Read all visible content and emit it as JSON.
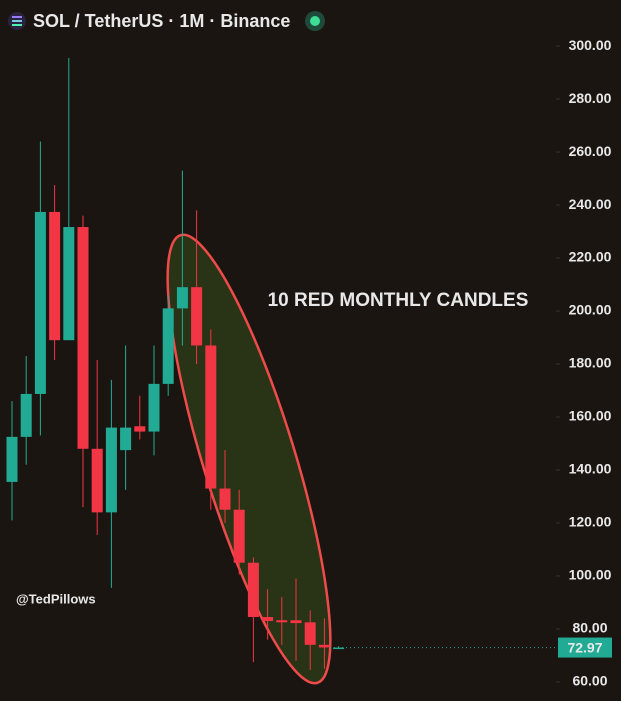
{
  "chart_data": {
    "type": "candlestick",
    "title": "SOL / TetherUS · 1M · Binance",
    "annotation": "10 RED MONTHLY CANDLES",
    "watermark": "@TedPillows",
    "open": [
      135.5,
      152.5,
      168.7,
      237.4,
      189,
      231.7,
      148,
      124,
      147.5,
      156.5,
      154.5,
      172.5,
      201,
      209,
      187,
      133,
      125,
      105,
      84.5,
      83.3,
      83.3,
      82.5,
      74,
      72.9
    ],
    "high": [
      166,
      183,
      264,
      247.5,
      295.5,
      236,
      181.5,
      174,
      187,
      168,
      187,
      206,
      253,
      238,
      193,
      147.5,
      132.5,
      107,
      95,
      92,
      99,
      87,
      84,
      73.5
    ],
    "low": [
      121,
      142,
      153,
      181.5,
      189,
      126,
      115.5,
      95.5,
      132.5,
      151.5,
      145.5,
      168,
      187,
      180,
      125,
      120,
      100.5,
      67.5,
      76,
      74,
      68,
      64.5,
      65,
      72.5
    ],
    "close": [
      152.5,
      168.7,
      237.4,
      189,
      231.7,
      148,
      124,
      156,
      156,
      154.5,
      172.5,
      201,
      209,
      187,
      133,
      125,
      105,
      84.5,
      83,
      82.5,
      82.2,
      74,
      73,
      72.97
    ],
    "up_color": "#22ab94",
    "down_color": "#f23645",
    "last_price": 72.97,
    "ylim": [
      52.8,
      317.4
    ],
    "yticks": [
      {
        "value": 60,
        "label": "60.00"
      },
      {
        "value": 80,
        "label": "80.00"
      },
      {
        "value": 100,
        "label": "100.00"
      },
      {
        "value": 120,
        "label": "120.00"
      },
      {
        "value": 140,
        "label": "140.00"
      },
      {
        "value": 160,
        "label": "160.00"
      },
      {
        "value": 180,
        "label": "180.00"
      },
      {
        "value": 200,
        "label": "200.00"
      },
      {
        "value": 220,
        "label": "220.00"
      },
      {
        "value": 240,
        "label": "240.00"
      },
      {
        "value": 260,
        "label": "260.00"
      },
      {
        "value": 280,
        "label": "280.00"
      },
      {
        "value": 300,
        "label": "300.00"
      }
    ]
  }
}
